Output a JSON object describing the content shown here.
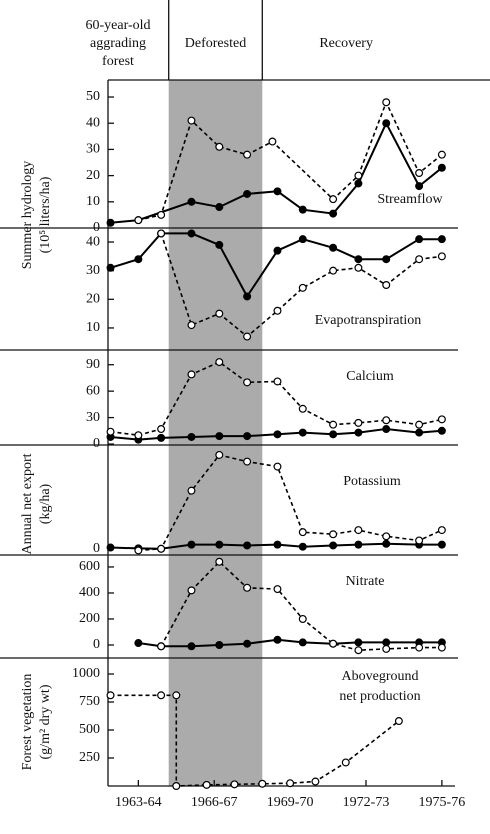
{
  "header": {
    "columns": [
      [
        "60-year-old",
        "aggrading",
        "forest"
      ],
      [
        "Deforested"
      ],
      [
        "Recovery"
      ]
    ]
  },
  "shade_x": [
    1964.2,
    1967.9
  ],
  "chart_data": [
    {
      "type": "line",
      "ylabel": [
        "Summer hydrology",
        "(10⁵ liters/ha)"
      ],
      "annotation": [
        "Streamflow"
      ],
      "xlim": [
        1961.8,
        1975.4
      ],
      "ylim": [
        0,
        56.5
      ],
      "yticks": [
        0,
        10,
        20,
        30,
        40,
        50
      ],
      "series": [
        {
          "line": "solid",
          "marker": "filled",
          "color": "#000000",
          "x": [
            1961.9,
            1963,
            1965.1,
            1966.2,
            1967.3,
            1968.5,
            1969.5,
            1970.7,
            1971.7,
            1972.8,
            1974.1,
            1975
          ],
          "values": [
            2,
            3,
            10,
            8,
            13,
            14,
            7,
            5.5,
            17,
            40,
            16,
            23
          ]
        },
        {
          "line": "dashed",
          "marker": "open",
          "color": "#000000",
          "x": [
            1963,
            1963.9,
            1965.1,
            1966.2,
            1967.3,
            1968.3,
            1970.7,
            1971.7,
            1972.8,
            1974.1,
            1975
          ],
          "values": [
            3,
            5,
            41,
            31,
            28,
            33,
            11,
            20,
            48,
            21,
            28
          ]
        }
      ]
    },
    {
      "type": "line",
      "annotation": [
        "Evapotranspiration"
      ],
      "xlim": [
        1961.8,
        1975.4
      ],
      "ylim": [
        2.3,
        44.9
      ],
      "yticks": [
        10,
        20,
        30,
        40
      ],
      "series": [
        {
          "line": "solid",
          "marker": "filled",
          "color": "#000000",
          "x": [
            1961.9,
            1963,
            1963.9,
            1965.1,
            1966.2,
            1967.3,
            1968.5,
            1969.5,
            1970.7,
            1971.7,
            1972.8,
            1974.1,
            1975
          ],
          "values": [
            31,
            34,
            43,
            43,
            39,
            21,
            37,
            41,
            38,
            34,
            34,
            41,
            41
          ]
        },
        {
          "line": "dashed",
          "marker": "open",
          "color": "#000000",
          "x": [
            1963.9,
            1965.1,
            1966.2,
            1967.3,
            1968.5,
            1969.5,
            1970.7,
            1971.7,
            1972.8,
            1974.1,
            1975
          ],
          "values": [
            43,
            11,
            15,
            7,
            16,
            24,
            30,
            31,
            25,
            34,
            35
          ]
        }
      ]
    },
    {
      "type": "line",
      "ylabel": [
        "Annual net export",
        "(kg/ha)"
      ],
      "annotation": [
        "Calcium"
      ],
      "xlim": [
        1961.8,
        1975.4
      ],
      "ylim": [
        -1.1,
        106.7
      ],
      "yticks": [
        0,
        30,
        60,
        90
      ],
      "series": [
        {
          "line": "solid",
          "marker": "filled",
          "color": "#000000",
          "x": [
            1961.9,
            1963,
            1963.9,
            1965.1,
            1966.2,
            1967.3,
            1968.5,
            1969.5,
            1970.7,
            1971.7,
            1972.8,
            1974.1,
            1975
          ],
          "values": [
            8,
            5,
            7,
            8,
            9,
            9,
            11,
            13,
            11,
            13,
            17,
            13,
            15
          ]
        },
        {
          "line": "dashed",
          "marker": "open",
          "color": "#000000",
          "x": [
            1961.9,
            1963,
            1963.9,
            1965.1,
            1966.2,
            1967.3,
            1968.5,
            1969.5,
            1970.7,
            1971.7,
            1972.8,
            1974.1,
            1975
          ],
          "values": [
            14,
            10,
            17,
            79,
            93,
            70,
            71,
            40,
            22,
            24,
            27,
            22,
            28
          ]
        }
      ]
    },
    {
      "type": "line",
      "annotation": [
        "Potassium"
      ],
      "xlim": [
        1961.8,
        1975.4
      ],
      "ylim": [
        -1.5,
        25
      ],
      "yticks": [
        0
      ],
      "series": [
        {
          "line": "solid",
          "marker": "filled",
          "color": "#000000",
          "x": [
            1961.9,
            1963,
            1963.9,
            1965.1,
            1966.2,
            1967.3,
            1968.5,
            1969.5,
            1970.7,
            1971.7,
            1972.8,
            1974.1,
            1975
          ],
          "values": [
            0.3,
            0.1,
            0,
            1,
            1,
            0.8,
            1,
            0.5,
            0.8,
            1,
            1.2,
            1,
            1
          ]
        },
        {
          "line": "dashed",
          "marker": "open",
          "color": "#000000",
          "x": [
            1963,
            1963.9,
            1965.1,
            1966.2,
            1967.3,
            1968.5,
            1969.5,
            1970.7,
            1971.7,
            1972.8,
            1974.1,
            1975
          ],
          "values": [
            -0.4,
            0,
            14,
            22.6,
            21,
            19.8,
            4,
            3.5,
            4.5,
            3,
            2,
            4.5
          ]
        }
      ]
    },
    {
      "type": "line",
      "annotation": [
        "Nitrate"
      ],
      "xlim": [
        1961.8,
        1975.4
      ],
      "ylim": [
        -100,
        692
      ],
      "yticks": [
        0,
        200,
        400,
        600
      ],
      "series": [
        {
          "line": "solid",
          "marker": "filled",
          "color": "#000000",
          "x": [
            1963,
            1963.9,
            1965.1,
            1966.2,
            1967.3,
            1968.5,
            1969.5,
            1970.7,
            1971.7,
            1972.8,
            1974.1,
            1975
          ],
          "values": [
            15,
            -10,
            -10,
            0,
            10,
            40,
            20,
            10,
            20,
            20,
            20,
            20
          ]
        },
        {
          "line": "dashed",
          "marker": "open",
          "color": "#000000",
          "x": [
            1963.9,
            1965.1,
            1966.2,
            1967.3,
            1968.5,
            1969.5,
            1970.7,
            1971.7,
            1972.8,
            1974.1,
            1975
          ],
          "values": [
            -10,
            420,
            640,
            440,
            430,
            200,
            10,
            -40,
            -30,
            -20,
            -20
          ]
        }
      ]
    },
    {
      "type": "line",
      "ylabel": [
        "Forest vegetation",
        "(g/m² dry wt)"
      ],
      "annotation": [
        "Aboveground",
        "net production"
      ],
      "xlim": [
        1961.8,
        1975.4
      ],
      "ylim": [
        0,
        1143
      ],
      "yticks": [
        250,
        500,
        750,
        1000
      ],
      "xticks": [
        {
          "value": 1963,
          "label": "1963-64"
        },
        {
          "value": 1966,
          "label": "1966-67"
        },
        {
          "value": 1969,
          "label": "1969-70"
        },
        {
          "value": 1972,
          "label": "1972-73"
        },
        {
          "value": 1975,
          "label": "1975-76"
        }
      ],
      "series": [
        {
          "line": "dashed",
          "marker": "open",
          "color": "#000000",
          "x": [
            1961.9,
            1963.9,
            1964.5,
            1964.5,
            1965.7,
            1966.8,
            1967.9,
            1969.0,
            1970.0,
            1971.2,
            1973.3
          ],
          "values": [
            810,
            810,
            810,
            0,
            10,
            15,
            20,
            25,
            40,
            210,
            580
          ]
        }
      ]
    }
  ]
}
